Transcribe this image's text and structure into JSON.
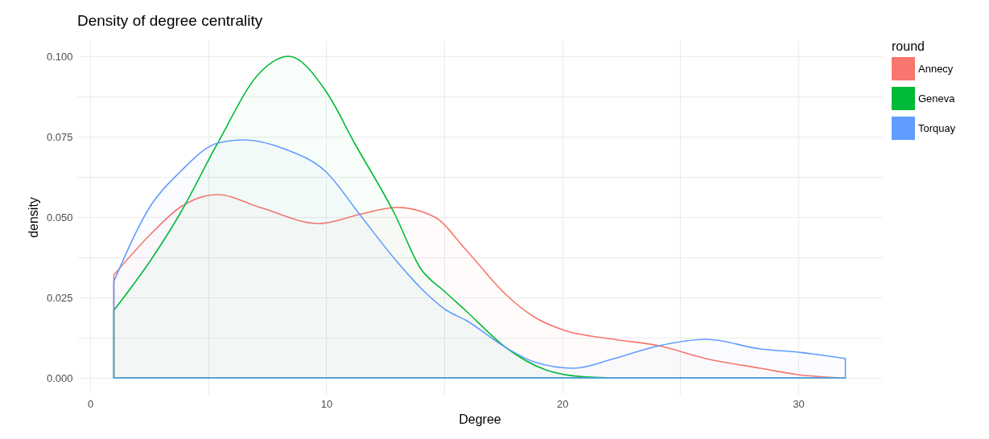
{
  "chart_data": {
    "type": "area",
    "title": "Density of degree centrality",
    "xlabel": "Degree",
    "ylabel": "density",
    "legend_title": "round",
    "series": [
      {
        "name": "Annecy",
        "color": "#f8766d",
        "x": [
          1,
          2.6,
          3.8,
          5.4,
          7.2,
          9.7,
          11.5,
          13,
          14.6,
          15.9,
          17.6,
          18.8,
          20,
          22.2,
          24.1,
          26.1,
          28.4,
          30,
          32
        ],
        "values": [
          0.032,
          0.045,
          0.053,
          0.057,
          0.053,
          0.048,
          0.051,
          0.053,
          0.05,
          0.04,
          0.026,
          0.019,
          0.015,
          0.012,
          0.01,
          0.006,
          0.003,
          0.001,
          0
        ]
      },
      {
        "name": "Geneva",
        "color": "#00ba38",
        "x": [
          1,
          2.6,
          3.8,
          5.4,
          7.2,
          8.4,
          10,
          11.2,
          12.9,
          14,
          15,
          15.9,
          17.6,
          19.3,
          21,
          22.5,
          26,
          30,
          32
        ],
        "values": [
          0.021,
          0.037,
          0.051,
          0.073,
          0.095,
          0.1,
          0.089,
          0.073,
          0.051,
          0.034,
          0.027,
          0.021,
          0.0095,
          0.0025,
          0.0003,
          0,
          0,
          0,
          0
        ]
      },
      {
        "name": "Torquay",
        "color": "#619cff",
        "x": [
          1,
          2.6,
          3.8,
          5.4,
          6.5,
          8.3,
          10,
          11.4,
          12.9,
          14,
          15.1,
          15.9,
          17.6,
          18.8,
          20.5,
          22.2,
          24.1,
          26.1,
          28.4,
          30,
          32
        ],
        "values": [
          0.03,
          0.054,
          0.064,
          0.073,
          0.074,
          0.071,
          0.064,
          0.051,
          0.037,
          0.028,
          0.021,
          0.018,
          0.0095,
          0.005,
          0.003,
          0.006,
          0.01,
          0.012,
          0.009,
          0.008,
          0.006
        ]
      }
    ],
    "xlim": [
      -0.55,
      33.55
    ],
    "ylim": [
      -0.005,
      0.105
    ],
    "xticks": [
      0,
      {
        "value": 5,
        "label": null
      },
      10,
      {
        "value": 15,
        "label": null
      },
      20,
      {
        "value": 25,
        "label": null
      },
      30
    ],
    "yticks": [
      {
        "value": 0,
        "label": "0.000"
      },
      {
        "value": 0.0125,
        "label": null
      },
      {
        "value": 0.025,
        "label": "0.025"
      },
      {
        "value": 0.0375,
        "label": null
      },
      {
        "value": 0.05,
        "label": "0.050"
      },
      {
        "value": 0.0625,
        "label": null
      },
      {
        "value": 0.075,
        "label": "0.075"
      },
      {
        "value": 0.0875,
        "label": null
      },
      {
        "value": 0.1,
        "label": "0.100"
      }
    ],
    "grid": true,
    "legend": "right"
  }
}
